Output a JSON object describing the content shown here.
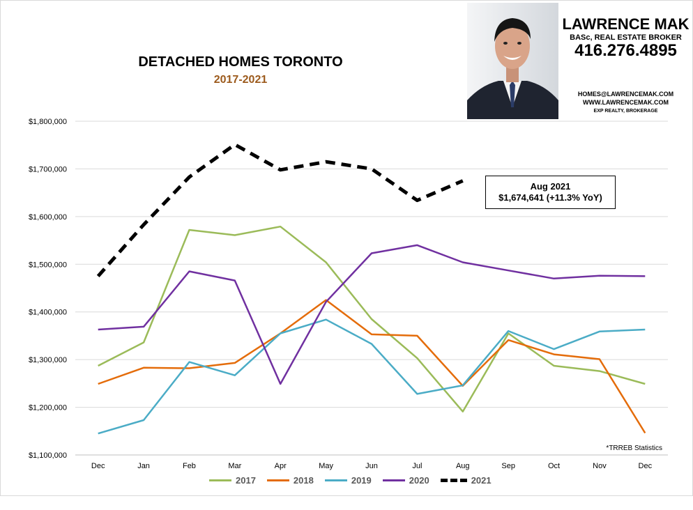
{
  "header": {
    "title": "DETACHED HOMES TORONTO",
    "subtitle": "2017-2021"
  },
  "agent": {
    "name": "LAWRENCE MAK",
    "title": "BASc, REAL ESTATE BROKER",
    "phone": "416.276.4895",
    "email": "HOMES@LAWRENCEMAK.COM",
    "website": "WWW.LAWRENCEMAK.COM",
    "brokerage": "EXP REALTY, BROKERAGE"
  },
  "callout": {
    "line1": "Aug 2021",
    "line2": "$1,674,641  (+11.3%  YoY)"
  },
  "source_note": "*TRREB Statistics",
  "chart_data": {
    "type": "line",
    "categories": [
      "Dec",
      "Jan",
      "Feb",
      "Mar",
      "Apr",
      "May",
      "Jun",
      "Jul",
      "Aug",
      "Sep",
      "Oct",
      "Nov",
      "Dec"
    ],
    "ylim": [
      1100000,
      1800000
    ],
    "yticks": [
      {
        "value": 1100000,
        "label": "$1,100,000"
      },
      {
        "value": 1200000,
        "label": "$1,200,000"
      },
      {
        "value": 1300000,
        "label": "$1,300,000"
      },
      {
        "value": 1400000,
        "label": "$1,400,000"
      },
      {
        "value": 1500000,
        "label": "$1,500,000"
      },
      {
        "value": 1600000,
        "label": "$1,600,000"
      },
      {
        "value": 1700000,
        "label": "$1,700,000"
      },
      {
        "value": 1800000,
        "label": "$1,800,000"
      }
    ],
    "grid": true,
    "legend_position": "bottom",
    "series": [
      {
        "name": "2017",
        "color": "#9bbb59",
        "dashed": false,
        "values": [
          1287000,
          1336000,
          1572000,
          1561000,
          1579000,
          1504000,
          1385000,
          1303000,
          1191000,
          1355000,
          1287000,
          1276000,
          1249000
        ]
      },
      {
        "name": "2018",
        "color": "#e46c0a",
        "dashed": false,
        "values": [
          1249000,
          1283000,
          1282000,
          1293000,
          1355000,
          1425000,
          1353000,
          1350000,
          1245000,
          1341000,
          1311000,
          1301000,
          1146000
        ]
      },
      {
        "name": "2019",
        "color": "#4bacc6",
        "dashed": false,
        "values": [
          1145000,
          1173000,
          1295000,
          1267000,
          1355000,
          1384000,
          1333000,
          1228000,
          1246000,
          1360000,
          1322000,
          1359000,
          1363000
        ]
      },
      {
        "name": "2020",
        "color": "#7030a0",
        "dashed": false,
        "values": [
          1363000,
          1369000,
          1485000,
          1466000,
          1249000,
          1421000,
          1523000,
          1540000,
          1504000,
          1487000,
          1470000,
          1476000,
          1475000
        ]
      },
      {
        "name": "2021",
        "color": "#000000",
        "dashed": true,
        "values": [
          1475000,
          1583000,
          1683000,
          1751000,
          1698000,
          1715000,
          1700000,
          1634000,
          1675000,
          null,
          null,
          null,
          null
        ]
      }
    ]
  }
}
